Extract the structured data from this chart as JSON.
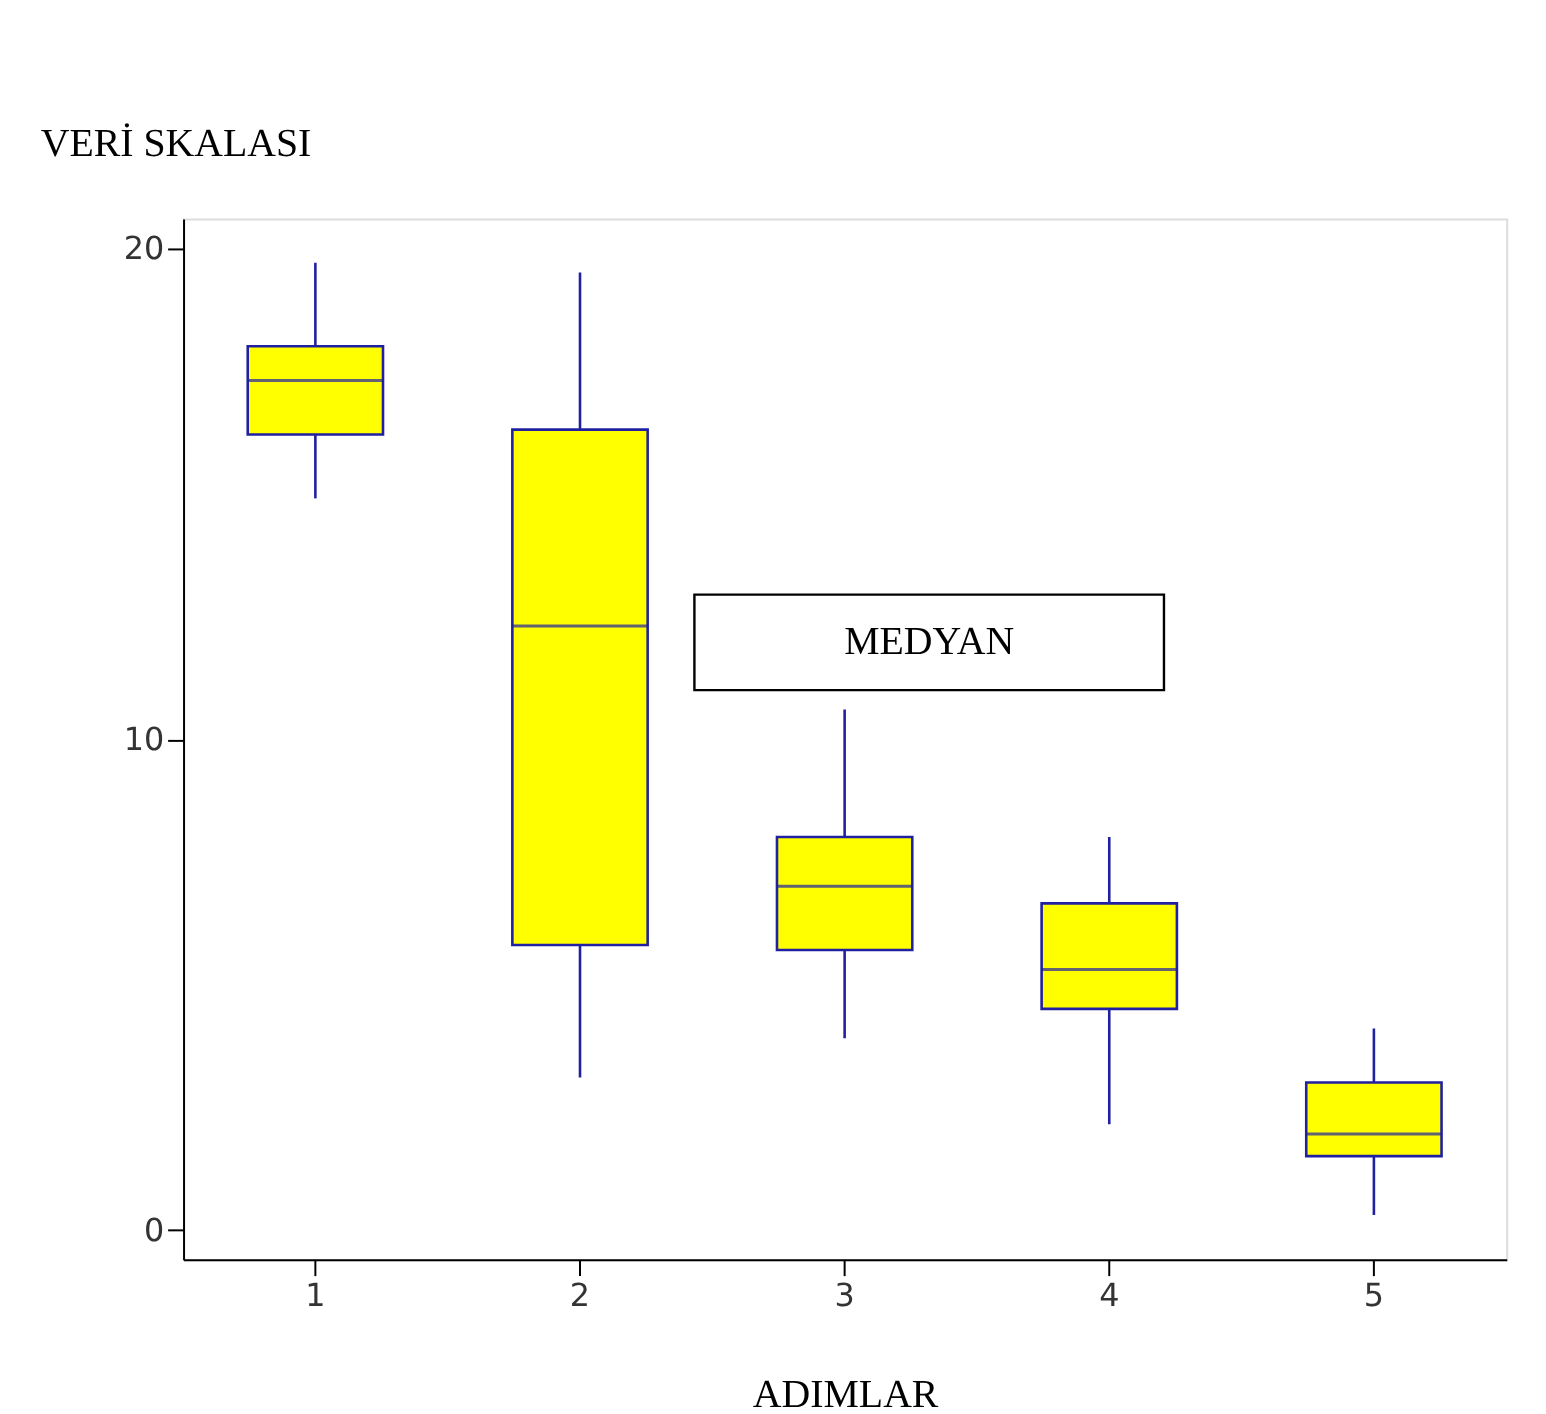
{
  "chart_data": {
    "type": "box",
    "xlabel": "ADIMLAR",
    "ylabel": "VERİ SKALASI",
    "categories": [
      "1",
      "2",
      "3",
      "4",
      "5"
    ],
    "series": [
      {
        "color": "#ffff00",
        "boxes": [
          {
            "low": 14.9,
            "q1": 16.2,
            "median": 17.3,
            "q3": 18.0,
            "high": 19.7
          },
          {
            "low": 3.1,
            "q1": 5.8,
            "median": 12.3,
            "q3": 16.3,
            "high": 19.5
          },
          {
            "low": 3.9,
            "q1": 5.7,
            "median": 7.0,
            "q3": 8.0,
            "high": 10.6
          },
          {
            "low": 2.15,
            "q1": 4.5,
            "median": 5.3,
            "q3": 6.65,
            "high": 8.0
          },
          {
            "low": 0.3,
            "q1": 1.5,
            "median": 1.95,
            "q3": 3.0,
            "high": 4.1
          }
        ]
      }
    ],
    "ylim": [
      -0.6,
      20.6
    ],
    "yticks": [
      0,
      10,
      20
    ],
    "grid": false,
    "annotations": [
      "MEDYAN"
    ]
  }
}
